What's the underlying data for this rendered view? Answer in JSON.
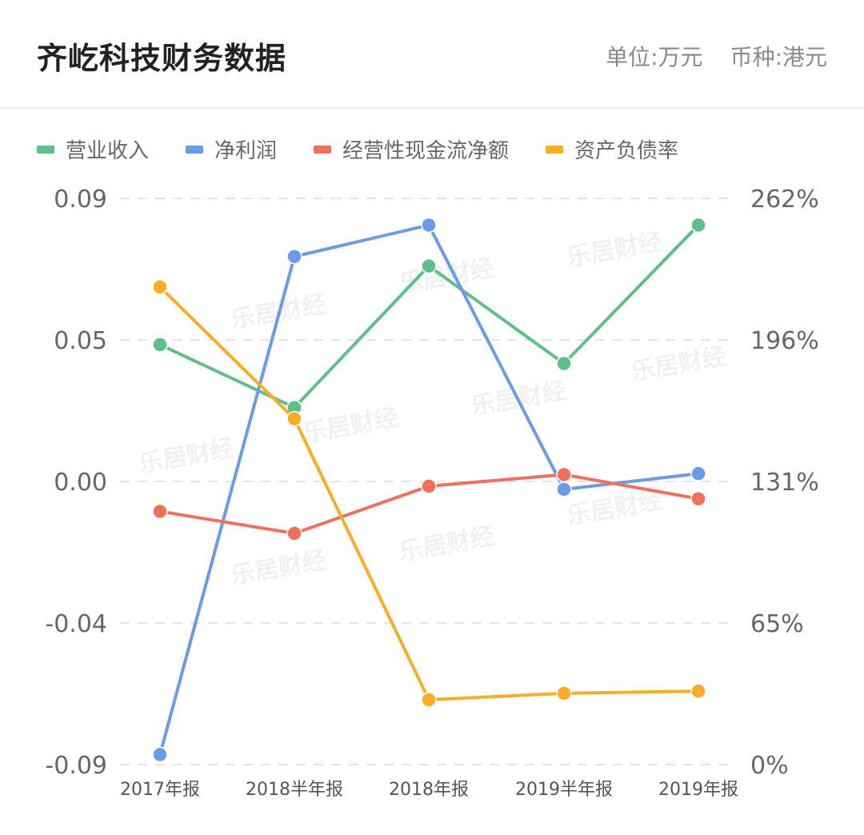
{
  "header": {
    "title": "齐屹科技财务数据",
    "unit_label": "单位:万元",
    "currency_label": "币种:港元"
  },
  "colors": {
    "revenue": "#5dbf8a",
    "net_profit": "#6a9be6",
    "cash_flow": "#f0705e",
    "debt_ratio": "#f9ad27"
  },
  "chart_data": {
    "type": "line",
    "categories": [
      "2017年报",
      "2018半年报",
      "2018年报",
      "2019半年报",
      "2019年报"
    ],
    "left_axis": {
      "ticks": [
        "0.09",
        "0.05",
        "0.00",
        "-0.04",
        "-0.09"
      ],
      "ylim": [
        -0.09,
        0.09
      ]
    },
    "right_axis": {
      "ticks": [
        "262%",
        "196%",
        "131%",
        "65%",
        "0%"
      ],
      "ylim": [
        0,
        262
      ]
    },
    "grid": true,
    "legend_position": "top-left",
    "series": [
      {
        "name": "营业收入",
        "axis": "left",
        "color": "#5dbf8a",
        "values": [
          0.0435,
          0.0235,
          0.0685,
          0.0375,
          0.0815
        ]
      },
      {
        "name": "净利润",
        "axis": "left",
        "color": "#6a9be6",
        "values": [
          -0.0868,
          0.0715,
          0.0815,
          -0.0025,
          0.0025
        ]
      },
      {
        "name": "经营性现金流净额",
        "axis": "left",
        "color": "#f0705e",
        "values": [
          -0.0095,
          -0.0165,
          -0.0015,
          0.0022,
          -0.0055
        ]
      },
      {
        "name": "资产负债率",
        "axis": "right",
        "color": "#f9ad27",
        "values": [
          221,
          160,
          30,
          33,
          34
        ]
      }
    ]
  },
  "watermark": "乐居财经"
}
